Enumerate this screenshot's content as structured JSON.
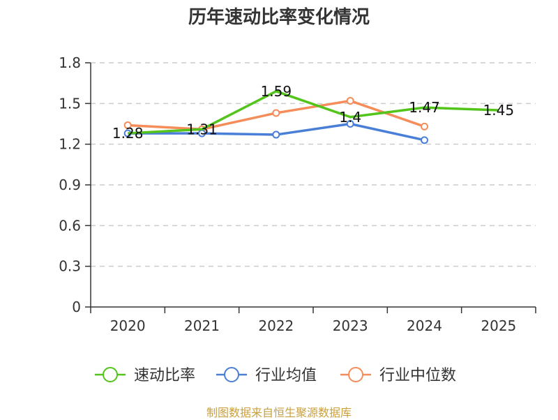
{
  "chart_data": {
    "type": "line",
    "title": "历年速动比率变化情况",
    "categories": [
      "2020",
      "2021",
      "2022",
      "2023",
      "2024",
      "2025"
    ],
    "ylim": [
      0,
      1.8
    ],
    "yticks": [
      "0",
      "0.3",
      "0.6",
      "0.9",
      "1.2",
      "1.5",
      "1.8"
    ],
    "grid": true,
    "legend_position": "bottom",
    "series": [
      {
        "name": "速动比率",
        "color": "#52c41a",
        "values": [
          1.28,
          1.31,
          1.59,
          1.4,
          1.47,
          1.45
        ],
        "labels": [
          "1.28",
          "1.31",
          "1.59",
          "1.4",
          "1.47",
          "1.45"
        ]
      },
      {
        "name": "行业均值",
        "color": "#4a7fd8",
        "values": [
          1.28,
          1.28,
          1.27,
          1.35,
          1.23,
          null
        ]
      },
      {
        "name": "行业中位数",
        "color": "#f58c5a",
        "values": [
          1.34,
          1.31,
          1.43,
          1.52,
          1.33,
          null
        ]
      }
    ]
  },
  "footer": {
    "source": "制图数据来自恒生聚源数据库",
    "source_color": "#c8a040"
  }
}
